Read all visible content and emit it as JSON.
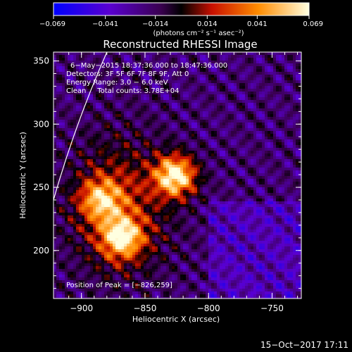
{
  "chart_data": {
    "type": "heatmap",
    "title": "Reconstructed RHESSI Image",
    "xlabel": "Heliocentric X (arcsec)",
    "ylabel": "Heliocentric Y (arcsec)",
    "xlim": [
      -922,
      -727
    ],
    "ylim": [
      162,
      357
    ],
    "x_ticks": [
      -900,
      -850,
      -800,
      -750
    ],
    "x_tick_labels": [
      "−900",
      "−850",
      "−800",
      "−750"
    ],
    "y_ticks": [
      200,
      250,
      300,
      350
    ],
    "y_tick_labels": [
      "200",
      "250",
      "300",
      "350"
    ],
    "colorbar": {
      "range": [
        -0.069,
        0.069
      ],
      "ticks": [
        -0.069,
        -0.041,
        -0.014,
        0.014,
        0.041,
        0.069
      ],
      "tick_labels": [
        "−0.069",
        "−0.041",
        "−0.014",
        "0.014",
        "0.041",
        "0.069"
      ],
      "unit_label": "(photons cm⁻² s⁻¹ asec⁻²)",
      "colors": [
        "#0000ff",
        "#6a00c8",
        "#000000",
        "#cc2000",
        "#ff9a00",
        "#ffffe0"
      ]
    },
    "sources": [
      {
        "name": "peak",
        "x": -826,
        "y": 259,
        "intensity": 1.0
      },
      {
        "name": "secondary",
        "x": -868,
        "y": 210,
        "intensity": 0.78
      },
      {
        "name": "tertiary",
        "x": -885,
        "y": 240,
        "intensity": 0.6
      }
    ],
    "limb_arc": true
  },
  "annotations": {
    "time_range": "6−May−2015 18:37:36.000 to 18:47:36.000",
    "detectors": "Detectors: 3F 5F 6F 7F 8F 9F, Att 0",
    "energy": "Energy Range: 3.0 − 6.0 keV",
    "clean": "Clean     Total counts: 3.78E+04",
    "peak": "Position of Peak = [−826,259]"
  },
  "footer": {
    "timestamp": "15−Oct−2017 17:11"
  }
}
